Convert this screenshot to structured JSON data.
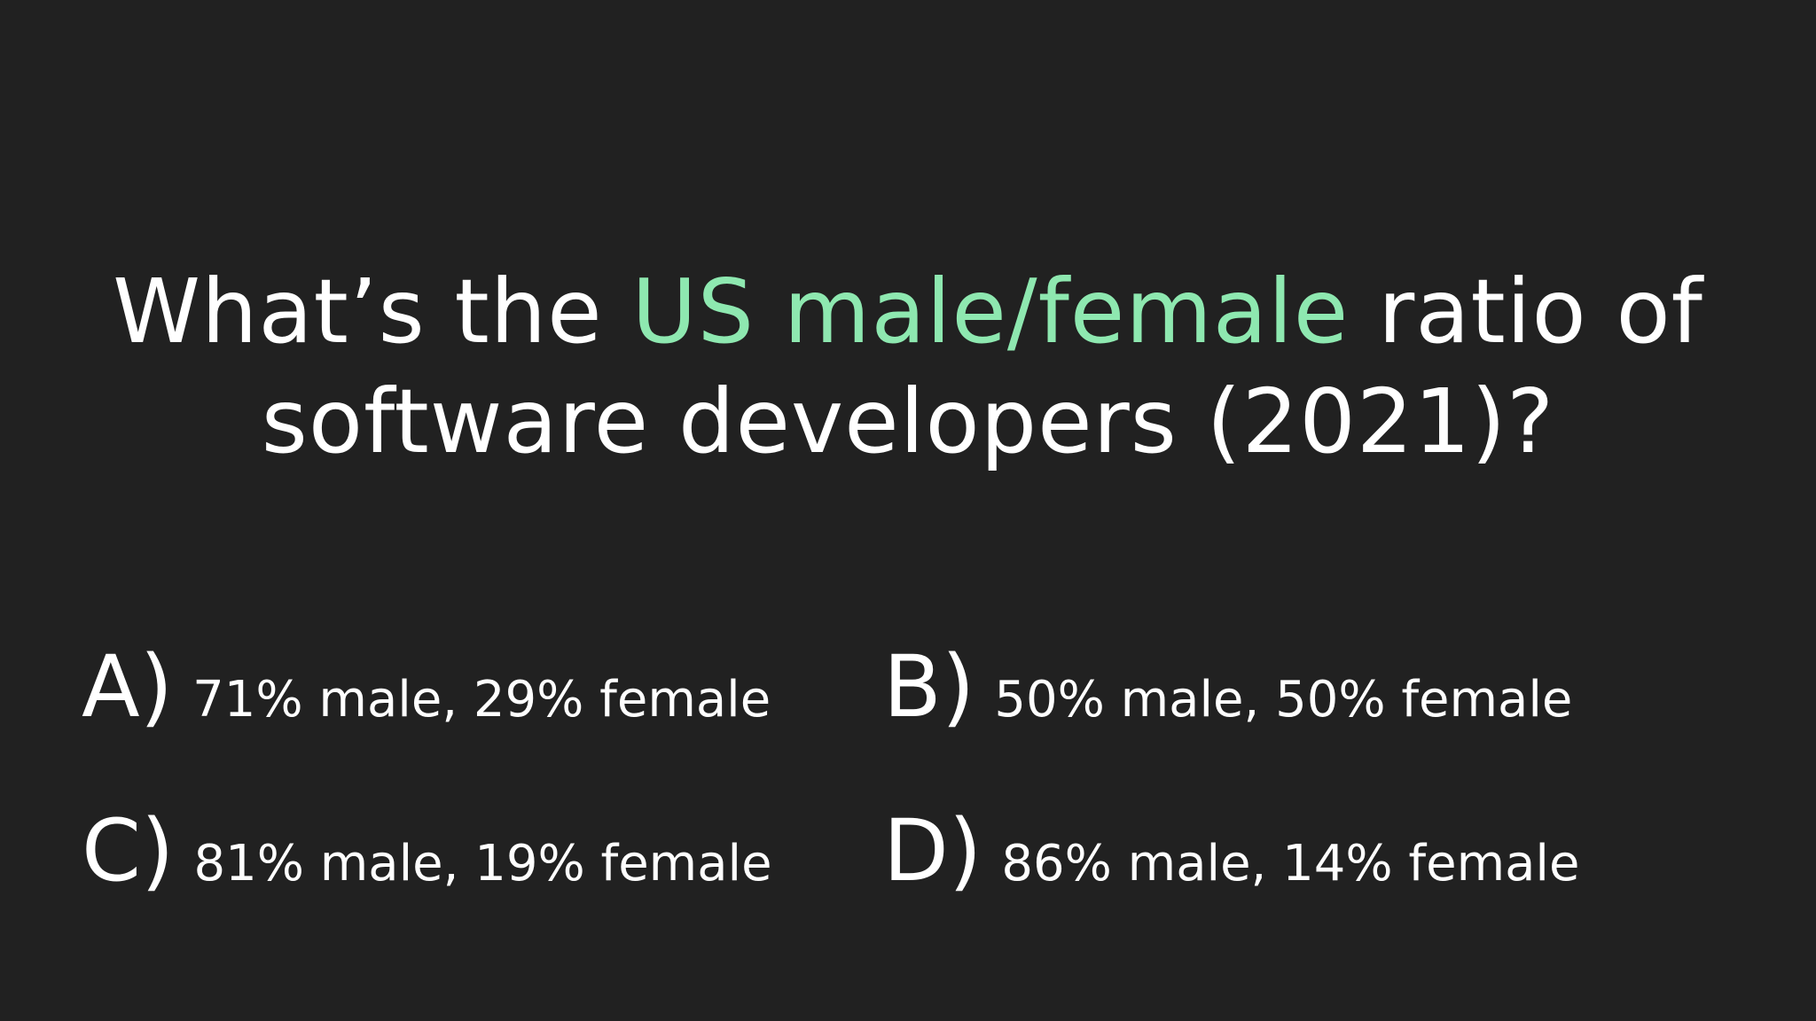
{
  "question": {
    "line1_before": "What’s the ",
    "line1_highlight": "US male/female",
    "line1_after": " ratio of",
    "line2": "software developers (2021)?"
  },
  "options": [
    {
      "letter": "A)",
      "text": "71% male, 29% female"
    },
    {
      "letter": "B)",
      "text": "50% male, 50% female"
    },
    {
      "letter": "C)",
      "text": "81% male, 19% female"
    },
    {
      "letter": "D)",
      "text": "86% male, 14% female"
    }
  ],
  "colors": {
    "background": "#212121",
    "text": "#ffffff",
    "highlight": "#8ee8b0"
  }
}
